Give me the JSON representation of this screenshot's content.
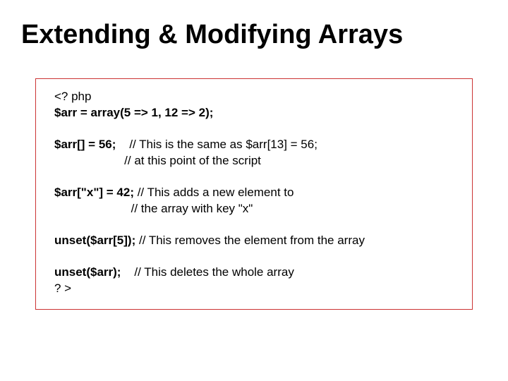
{
  "title": "Extending & Modifying Arrays",
  "code": {
    "l1": "<? php",
    "l2": "$arr = array(5 => 1, 12 => 2);",
    "l3a": "$arr[] = 56;",
    "l3b": "    // This is the same as $arr[13] = 56;",
    "l4": "                     // at this point of the script",
    "l5a": "$arr[\"x\"] = 42;",
    "l5b": " // This adds a new element to",
    "l6": "                       // the array with key \"x\"",
    "l7a": "unset($arr[5]);",
    "l7b": " // This removes the element from the array",
    "l8a": "unset($arr);",
    "l8b": "    // This deletes the whole array",
    "l9": "? >"
  },
  "colors": {
    "border": "#cc3333",
    "text": "#000000",
    "background": "#ffffff"
  },
  "fontsize": {
    "title": 38,
    "code": 17
  }
}
